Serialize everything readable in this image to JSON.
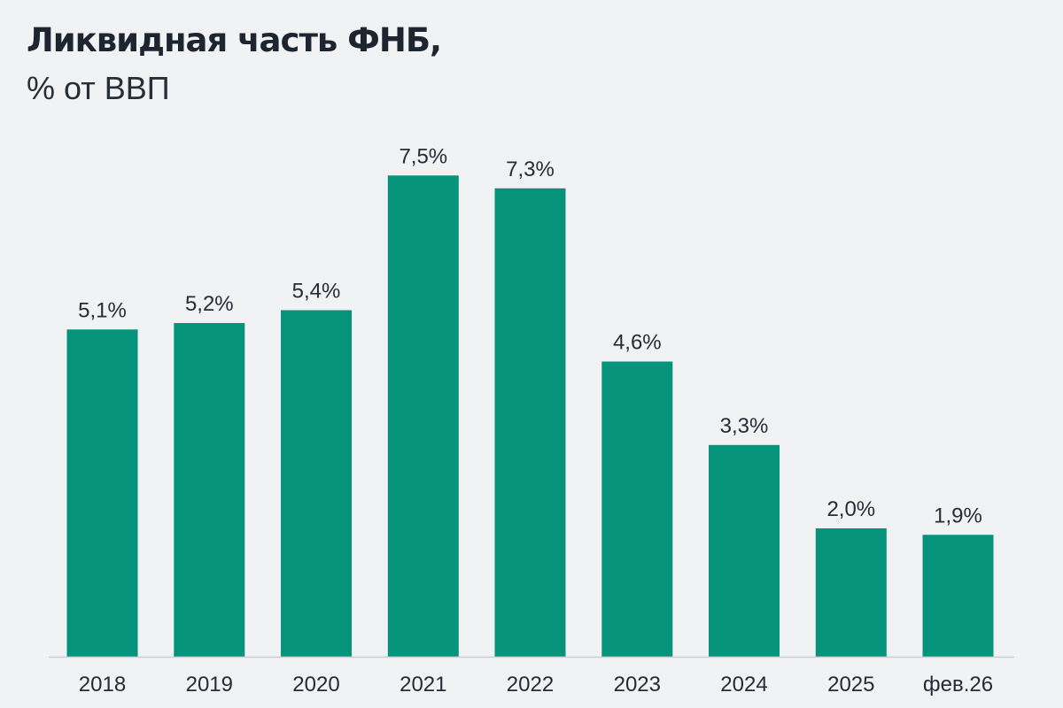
{
  "chart_data": {
    "type": "bar",
    "title": "Ликвидная часть ФНБ,",
    "subtitle": "% от ВВП",
    "xlabel": "",
    "ylabel": "",
    "categories": [
      "2018",
      "2019",
      "2020",
      "2021",
      "2022",
      "2023",
      "2024",
      "2025",
      "фев.26"
    ],
    "values": [
      5.1,
      5.2,
      5.4,
      7.5,
      7.3,
      4.6,
      3.3,
      2.0,
      1.9
    ],
    "value_labels": [
      "5,1%",
      "5,2%",
      "5,4%",
      "7,5%",
      "7,3%",
      "4,6%",
      "3,3%",
      "2,0%",
      "1,9%"
    ],
    "ylim": [
      0,
      7.5
    ],
    "grid": false,
    "legend": "none",
    "colors": {
      "bar": "#06937c",
      "background": "#f1f2f4",
      "axis": "#c9cdd2",
      "text": "#252c36"
    }
  }
}
